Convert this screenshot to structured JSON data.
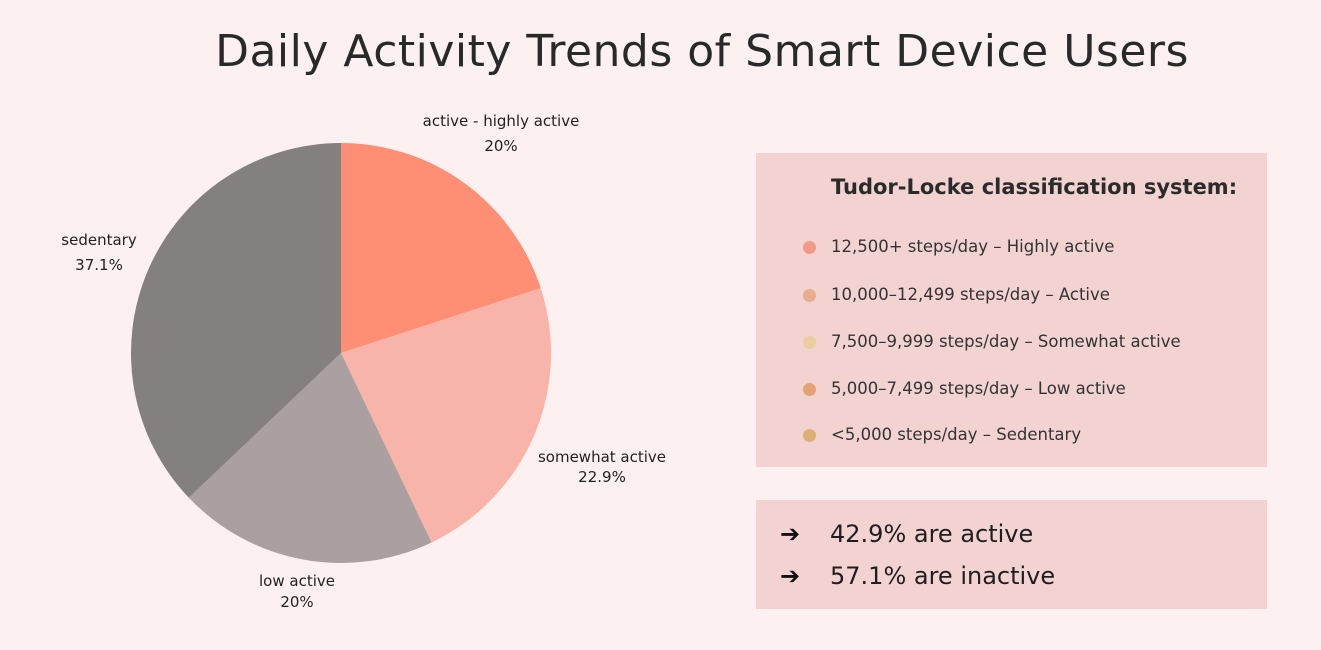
{
  "title": "Daily Activity Trends of Smart Device Users",
  "chart_data": {
    "type": "pie",
    "title": "Daily Activity Trends of Smart Device Users",
    "slices": [
      {
        "label": "active - highly active",
        "value": 20,
        "value_label": "20%",
        "color": "#fe8e74"
      },
      {
        "label": "somewhat active",
        "value": 22.9,
        "value_label": "22.9%",
        "color": "#f8b4a8"
      },
      {
        "label": "low active",
        "value": 20,
        "value_label": "20%",
        "color": "#aaa09f"
      },
      {
        "label": "sedentary",
        "value": 37.1,
        "value_label": "37.1%",
        "color": "#83807f"
      }
    ],
    "start_angle": "12 o'clock",
    "direction": "clockwise"
  },
  "legend": {
    "title": "Tudor-Locke classification system:",
    "items": [
      {
        "text": "12,500+ steps/day – Highly active",
        "color": "#f19a88"
      },
      {
        "text": "10,000–12,499 steps/day – Active",
        "color": "#e8ad8f"
      },
      {
        "text": "7,500–9,999 steps/day – Somewhat active",
        "color": "#eccd9e"
      },
      {
        "text": "5,000–7,499 steps/day – Low active",
        "color": "#e2a273"
      },
      {
        "text": "<5,000 steps/day – Sedentary",
        "color": "#e0af77"
      }
    ]
  },
  "summary": {
    "arrow_icon": "➔",
    "lines": [
      {
        "text": "42.9% are active"
      },
      {
        "text": "57.1% are inactive"
      }
    ]
  }
}
